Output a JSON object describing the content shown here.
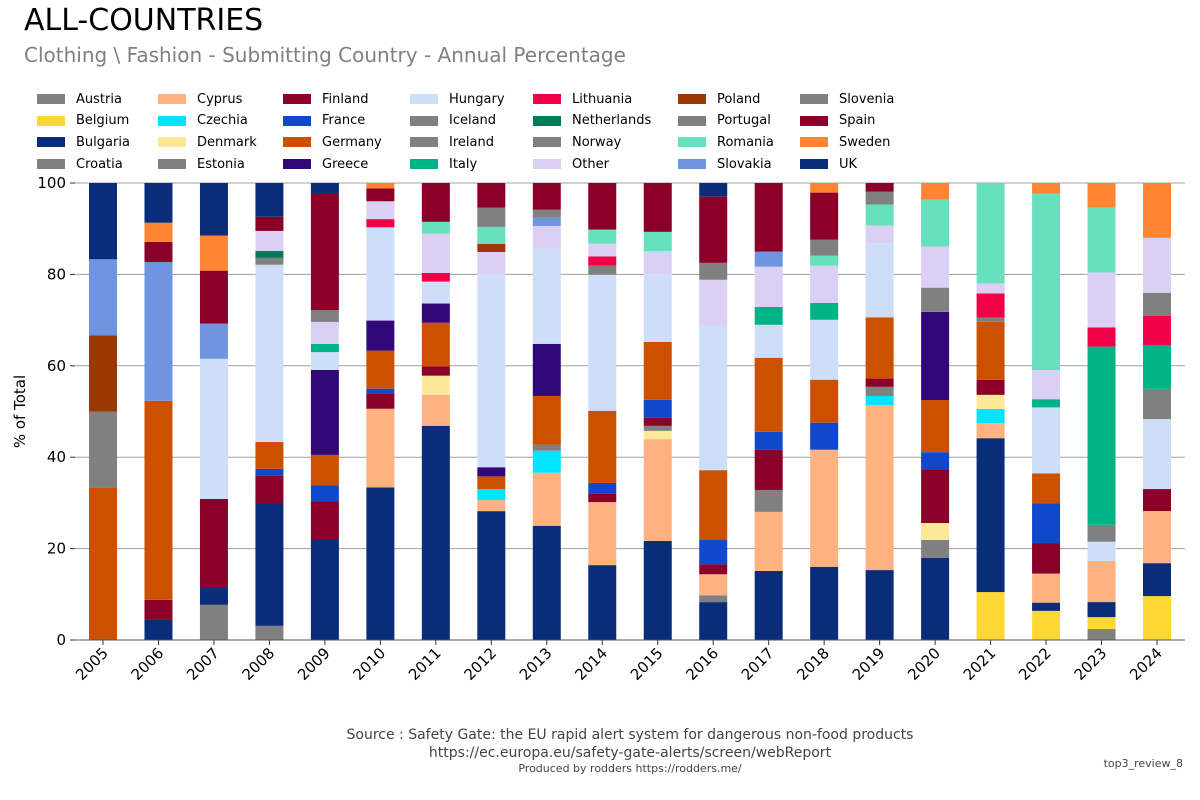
{
  "title": "ALL-COUNTRIES",
  "subtitle": "Clothing \\ Fashion - Submitting Country - Annual Percentage",
  "footer": {
    "source": "Source : Safety Gate: the EU rapid alert system for dangerous non-food products",
    "url": "https://ec.europa.eu/safety-gate-alerts/screen/webReport",
    "produced": "Produced by rodders https://rodders.me/",
    "tag": "top3_review_8"
  },
  "chart_data": {
    "type": "bar",
    "stacked": true,
    "title": "ALL-COUNTRIES",
    "xlabel": "",
    "ylabel": "% of Total",
    "ylim": [
      0,
      100
    ],
    "yticks": [
      0,
      20,
      40,
      60,
      80,
      100
    ],
    "grid": true,
    "legend_position": "top",
    "categories": [
      "2005",
      "2006",
      "2007",
      "2008",
      "2009",
      "2010",
      "2011",
      "2012",
      "2013",
      "2014",
      "2015",
      "2016",
      "2017",
      "2018",
      "2019",
      "2020",
      "2021",
      "2022",
      "2023",
      "2024"
    ],
    "series": [
      {
        "name": "Austria",
        "color": "#808080",
        "values": [
          0,
          0,
          7.7,
          3.1,
          0,
          0,
          0,
          0,
          0,
          0,
          0,
          0,
          0,
          0,
          0,
          0,
          0,
          0,
          2.4,
          0
        ]
      },
      {
        "name": "Belgium",
        "color": "#FDD835",
        "values": [
          0,
          0,
          0,
          0,
          0,
          0,
          0,
          0,
          0,
          0,
          0,
          0,
          0,
          0,
          0,
          0,
          10.5,
          6.4,
          2.6,
          9.6
        ]
      },
      {
        "name": "Bulgaria",
        "color": "#0A2D7A",
        "values": [
          0,
          4.4,
          3.9,
          26.8,
          22.1,
          33.4,
          46.9,
          28.2,
          25.0,
          16.4,
          21.7,
          8.3,
          15.1,
          16.0,
          15.3,
          18.0,
          33.7,
          1.8,
          3.3,
          7.2
        ]
      },
      {
        "name": "Croatia",
        "color": "#808080",
        "values": [
          0,
          0,
          0,
          0,
          0,
          0,
          0,
          0,
          0,
          0,
          0,
          1.5,
          0,
          0,
          0,
          3.9,
          0,
          0,
          0,
          0
        ]
      },
      {
        "name": "Cyprus",
        "color": "#FFB280",
        "values": [
          0,
          0,
          0,
          0,
          0,
          17.2,
          6.8,
          2.4,
          11.6,
          13.8,
          22.3,
          4.6,
          12.9,
          25.6,
          36.1,
          0,
          3.3,
          6.4,
          9.0,
          11.4
        ]
      },
      {
        "name": "Czechia",
        "color": "#00E5FF",
        "values": [
          0,
          0,
          0,
          0,
          0,
          0,
          0,
          2.4,
          4.8,
          0,
          0,
          0,
          0,
          0,
          2.0,
          0,
          3.1,
          0,
          0,
          0
        ]
      },
      {
        "name": "Denmark",
        "color": "#FFE999",
        "values": [
          0,
          0,
          0,
          0,
          0,
          0,
          4.2,
          0,
          0,
          0,
          1.8,
          0,
          0,
          0,
          0,
          3.7,
          3.1,
          0,
          0,
          0
        ]
      },
      {
        "name": "Estonia",
        "color": "#808080",
        "values": [
          0,
          0,
          0,
          0,
          0,
          0,
          0,
          0,
          1.3,
          0,
          1.1,
          0,
          4.8,
          0,
          2.0,
          0,
          0,
          0,
          0,
          0
        ]
      },
      {
        "name": "Finland",
        "color": "#8B0029",
        "values": [
          0,
          4.4,
          19.3,
          6.1,
          8.2,
          3.4,
          2.0,
          0,
          0,
          1.8,
          1.8,
          2.2,
          8.8,
          0,
          1.8,
          11.6,
          3.3,
          6.6,
          0,
          4.8
        ]
      },
      {
        "name": "France",
        "color": "#1048CC",
        "values": [
          0,
          0,
          0,
          1.5,
          3.5,
          1.0,
          0,
          0,
          0,
          2.4,
          3.9,
          5.3,
          3.9,
          5.9,
          0,
          3.9,
          0,
          8.8,
          0,
          0
        ]
      },
      {
        "name": "Germany",
        "color": "#CC5000",
        "values": [
          33.3,
          43.6,
          0,
          5.9,
          6.7,
          8.3,
          9.6,
          2.8,
          10.7,
          15.8,
          12.7,
          15.3,
          16.2,
          9.4,
          13.4,
          11.4,
          12.7,
          6.6,
          0,
          0
        ]
      },
      {
        "name": "Greece",
        "color": "#310878",
        "values": [
          0,
          0,
          0,
          0,
          18.6,
          6.6,
          4.2,
          2.0,
          11.4,
          0,
          0,
          0,
          0,
          0,
          0,
          19.3,
          0,
          0,
          0,
          0
        ]
      },
      {
        "name": "Hungary",
        "color": "#CEDDFA",
        "values": [
          0,
          0,
          30.7,
          38.8,
          3.9,
          20.4,
          4.8,
          42.3,
          20.8,
          29.8,
          14.9,
          31.8,
          7.2,
          13.1,
          16.2,
          0,
          0,
          14.5,
          4.2,
          15.3
        ]
      },
      {
        "name": "Iceland",
        "color": "#808080",
        "values": [
          0,
          0,
          0,
          0,
          0,
          0,
          0,
          0,
          0,
          0,
          0,
          0,
          0,
          0,
          0,
          0,
          0,
          0,
          0,
          0
        ]
      },
      {
        "name": "Ireland",
        "color": "#808080",
        "values": [
          16.7,
          0,
          0,
          1.5,
          0,
          0,
          0,
          0,
          0,
          2.0,
          0,
          0,
          0,
          0,
          0,
          5.3,
          0.9,
          0,
          3.7,
          6.6
        ]
      },
      {
        "name": "Italy",
        "color": "#00B386",
        "values": [
          0,
          0,
          0,
          0,
          1.8,
          0,
          0,
          0,
          0,
          0,
          0,
          0,
          3.9,
          3.7,
          0,
          0,
          0,
          1.8,
          39.0,
          9.6
        ]
      },
      {
        "name": "Lithuania",
        "color": "#F00047",
        "values": [
          0,
          0,
          0,
          0,
          0,
          1.8,
          1.9,
          0,
          0,
          2.0,
          0,
          0,
          0,
          0,
          0,
          0,
          5.3,
          0,
          4.2,
          6.4
        ]
      },
      {
        "name": "Netherlands",
        "color": "#007A5A",
        "values": [
          0,
          0,
          0,
          1.5,
          0,
          0,
          0,
          0,
          0,
          0,
          0,
          0,
          0,
          0,
          0,
          0,
          0,
          0,
          0,
          0
        ]
      },
      {
        "name": "Norway",
        "color": "#808080",
        "values": [
          0,
          0,
          0,
          0,
          0,
          0,
          0,
          0,
          0,
          0,
          0,
          0,
          0,
          0,
          0,
          0,
          0,
          0,
          0,
          5.0
        ]
      },
      {
        "name": "Other",
        "color": "#DCCFF5",
        "values": [
          0,
          0,
          0,
          4.4,
          4.8,
          3.9,
          8.6,
          4.8,
          5.0,
          2.8,
          5.0,
          9.9,
          8.8,
          8.1,
          3.9,
          9.0,
          2.2,
          6.4,
          12.0,
          12.0
        ]
      },
      {
        "name": "Poland",
        "color": "#993800",
        "values": [
          16.7,
          0,
          0,
          0,
          0,
          0,
          0,
          1.8,
          0,
          0,
          0,
          0,
          0,
          0,
          0,
          0,
          0,
          0,
          0,
          0
        ]
      },
      {
        "name": "Portugal",
        "color": "#808080",
        "values": [
          0,
          0,
          0,
          0,
          2.6,
          0,
          0,
          0,
          0,
          0,
          0,
          0,
          0,
          0,
          0,
          0,
          0,
          0,
          0,
          0
        ]
      },
      {
        "name": "Romania",
        "color": "#66E0BD",
        "values": [
          0,
          0,
          0,
          0,
          0,
          0,
          2.6,
          3.7,
          0,
          3.1,
          4.2,
          0,
          0,
          2.2,
          4.6,
          10.3,
          22.0,
          38.8,
          14.2,
          0
        ]
      },
      {
        "name": "Slovakia",
        "color": "#6F95E0",
        "values": [
          16.7,
          30.4,
          7.7,
          0,
          0,
          0,
          0,
          0,
          1.8,
          0,
          0,
          0,
          3.3,
          0,
          0,
          0,
          0,
          0,
          0,
          0
        ]
      },
      {
        "name": "Slovenia",
        "color": "#808080",
        "values": [
          0,
          0,
          0,
          0,
          0,
          0,
          0,
          4.2,
          1.8,
          0,
          0,
          3.7,
          0,
          3.5,
          2.8,
          0,
          0,
          0,
          0,
          0
        ]
      },
      {
        "name": "Spain",
        "color": "#8B0029",
        "values": [
          0,
          4.4,
          11.6,
          3.1,
          25.5,
          2.8,
          8.5,
          5.4,
          5.8,
          10.2,
          10.7,
          14.5,
          15.0,
          10.3,
          1.9,
          0,
          0,
          0,
          0,
          0
        ]
      },
      {
        "name": "Sweden",
        "color": "#FF8533",
        "values": [
          0,
          4.2,
          7.7,
          0,
          0,
          1.2,
          0,
          0,
          0,
          0,
          0,
          0,
          0,
          2.1,
          0,
          3.6,
          0,
          2.3,
          5.4,
          12.0
        ]
      },
      {
        "name": "UK",
        "color": "#0A2D7A",
        "values": [
          16.7,
          8.7,
          11.5,
          7.4,
          2.3,
          0,
          0,
          0,
          0,
          0,
          0,
          3.0,
          0,
          0,
          0,
          0,
          0,
          0,
          0,
          0
        ]
      }
    ]
  }
}
